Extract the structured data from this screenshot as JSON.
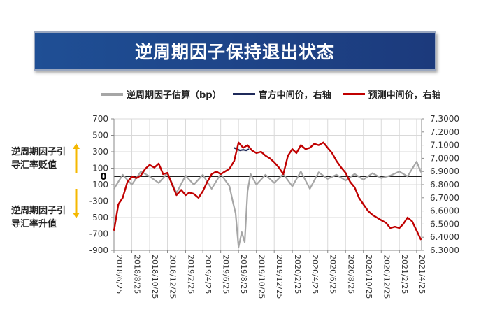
{
  "title": "逆周期因子保持退出状态",
  "legend": {
    "series1": "逆周期因子估算（bp）",
    "series2": "官方中间价，右轴",
    "series3": "预测中间价，右轴"
  },
  "annotations": {
    "up_line1": "逆周期因子引",
    "up_line2": "导汇率贬值",
    "down_line1": "逆周期因子引",
    "down_line2": "导汇率升值",
    "zero_label": "0"
  },
  "colors": {
    "banner": "#1c3a7c",
    "gray_series": "#a6a6a6",
    "navy_series": "#1f2a5a",
    "red_series": "#c00000",
    "arrow": "#f5b800"
  },
  "chart_data": {
    "type": "line",
    "title": "",
    "x_tick_labels": [
      "2018/6/25",
      "2018/8/25",
      "2018/10/25",
      "2018/12/25",
      "2019/2/25",
      "2019/4/25",
      "2019/6/25",
      "2019/8/25",
      "2019/10/25",
      "2019/12/25",
      "2020/2/25",
      "2020/4/25",
      "2020/6/25",
      "2020/8/25",
      "2020/10/25",
      "2020/12/25",
      "2021/2/25",
      "2021/4/25"
    ],
    "y_left": {
      "ylim": [
        -900,
        700
      ],
      "ticks": [
        "700",
        "500",
        "300",
        "100",
        "-100",
        "-300",
        "-500",
        "-700",
        "-900"
      ]
    },
    "y_right": {
      "ylim": [
        6.3,
        7.3
      ],
      "ticks": [
        "7.3000",
        "7.2000",
        "7.1000",
        "7.0000",
        "6.9000",
        "6.8000",
        "6.7000",
        "6.6000",
        "6.5000",
        "6.4000",
        "6.3000"
      ]
    },
    "series": [
      {
        "name": "逆周期因子估算（bp）",
        "axis": "left",
        "x": [
          "2018-06-25",
          "2018-07-25",
          "2018-08-25",
          "2018-09-25",
          "2018-10-25",
          "2018-11-25",
          "2018-12-25",
          "2019-01-25",
          "2019-02-25",
          "2019-03-25",
          "2019-04-25",
          "2019-05-25",
          "2019-06-25",
          "2019-07-25",
          "2019-08-05",
          "2019-08-15",
          "2019-08-25",
          "2019-09-05",
          "2019-09-15",
          "2019-09-25",
          "2019-10-05",
          "2019-10-25",
          "2019-11-25",
          "2019-12-25",
          "2020-01-25",
          "2020-02-25",
          "2020-03-25",
          "2020-04-25",
          "2020-05-25",
          "2020-06-25",
          "2020-07-25",
          "2020-08-25",
          "2020-09-25",
          "2020-10-25",
          "2020-11-25",
          "2020-12-25",
          "2021-01-25",
          "2021-02-25",
          "2021-03-25",
          "2021-04-25",
          "2021-05-10"
        ],
        "values": [
          -150,
          20,
          -100,
          60,
          0,
          -80,
          40,
          -200,
          10,
          -100,
          20,
          -150,
          30,
          -120,
          -300,
          -450,
          -860,
          -680,
          -800,
          -180,
          30,
          -100,
          20,
          -80,
          30,
          -120,
          60,
          -150,
          50,
          -30,
          20,
          -50,
          30,
          -40,
          40,
          -20,
          10,
          60,
          0,
          180,
          50
        ]
      },
      {
        "name": "官方中间价，右轴",
        "axis": "right",
        "x": [
          "2019-08-10",
          "2019-08-20",
          "2019-08-30",
          "2019-09-10",
          "2019-09-20",
          "2019-09-30"
        ],
        "values": [
          7.08,
          7.07,
          7.06,
          7.065,
          7.06,
          7.07
        ]
      },
      {
        "name": "预测中间价，右轴",
        "axis": "right",
        "x": [
          "2018-06-25",
          "2018-07-10",
          "2018-07-25",
          "2018-08-10",
          "2018-08-25",
          "2018-09-10",
          "2018-09-25",
          "2018-10-10",
          "2018-10-25",
          "2018-11-10",
          "2018-11-25",
          "2018-12-10",
          "2018-12-25",
          "2019-01-10",
          "2019-01-25",
          "2019-02-10",
          "2019-02-25",
          "2019-03-10",
          "2019-03-25",
          "2019-04-10",
          "2019-04-25",
          "2019-05-10",
          "2019-05-25",
          "2019-06-10",
          "2019-06-25",
          "2019-07-10",
          "2019-07-25",
          "2019-08-10",
          "2019-08-25",
          "2019-09-10",
          "2019-09-25",
          "2019-10-10",
          "2019-10-25",
          "2019-11-10",
          "2019-11-25",
          "2019-12-10",
          "2019-12-25",
          "2020-01-10",
          "2020-01-25",
          "2020-02-10",
          "2020-02-25",
          "2020-03-10",
          "2020-03-25",
          "2020-04-10",
          "2020-04-25",
          "2020-05-10",
          "2020-05-25",
          "2020-06-10",
          "2020-06-25",
          "2020-07-10",
          "2020-07-25",
          "2020-08-10",
          "2020-08-25",
          "2020-09-10",
          "2020-09-25",
          "2020-10-10",
          "2020-10-25",
          "2020-11-10",
          "2020-11-25",
          "2020-12-10",
          "2020-12-25",
          "2021-01-10",
          "2021-01-25",
          "2021-02-10",
          "2021-02-25",
          "2021-03-10",
          "2021-03-25",
          "2021-04-10",
          "2021-04-25",
          "2021-05-10"
        ],
        "values": [
          6.45,
          6.65,
          6.7,
          6.82,
          6.86,
          6.85,
          6.87,
          6.92,
          6.95,
          6.93,
          6.96,
          6.88,
          6.89,
          6.8,
          6.72,
          6.76,
          6.72,
          6.74,
          6.73,
          6.7,
          6.75,
          6.82,
          6.88,
          6.9,
          6.88,
          6.9,
          6.92,
          6.98,
          7.12,
          7.08,
          7.1,
          7.06,
          7.04,
          7.05,
          7.02,
          7.0,
          6.97,
          6.93,
          6.88,
          7.02,
          7.07,
          7.04,
          7.1,
          7.07,
          7.08,
          7.11,
          7.1,
          7.12,
          7.08,
          7.04,
          6.98,
          6.93,
          6.89,
          6.82,
          6.78,
          6.7,
          6.65,
          6.6,
          6.57,
          6.55,
          6.53,
          6.51,
          6.47,
          6.48,
          6.47,
          6.5,
          6.55,
          6.52,
          6.45,
          6.38
        ]
      }
    ]
  }
}
